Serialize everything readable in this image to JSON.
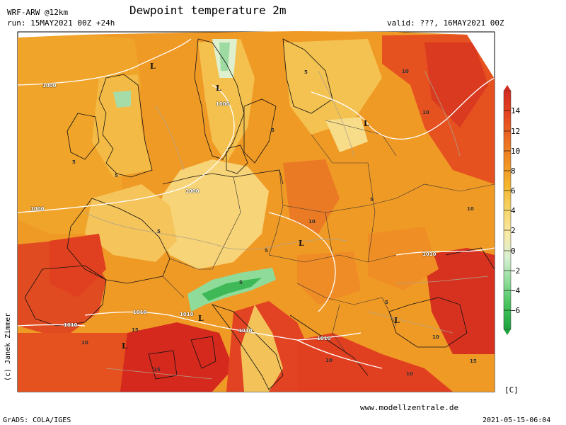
{
  "header": {
    "model": "WRF-ARW @12km",
    "title": "Dewpoint temperature 2m",
    "run": "run: 15MAY2021 00Z +24h",
    "valid": "valid: ???, 16MAY2021 00Z"
  },
  "colorbar": {
    "ticks": [
      "14",
      "12",
      "10",
      "8",
      "6",
      "4",
      "2",
      "0",
      "−2",
      "−4",
      "−6"
    ],
    "unit": "[C]",
    "colors": [
      "#d42a1e",
      "#e4451f",
      "#ec6b23",
      "#f09023",
      "#f4b62e",
      "#f7d66b",
      "#f9eaa6",
      "#d8f0d2",
      "#8fdc9a",
      "#44c35a",
      "#1ea33f"
    ]
  },
  "map": {
    "isobar_labels": [
      "1000",
      "1000",
      "1000",
      "1000",
      "1010",
      "1010",
      "1010",
      "1010",
      "1010"
    ],
    "low_labels": [
      "L",
      "L",
      "L",
      "L",
      "L",
      "L",
      "L"
    ],
    "isotherm_labels": [
      "5",
      "5",
      "5",
      "5",
      "5",
      "5",
      "5",
      "5",
      "5",
      "10",
      "10",
      "10",
      "10",
      "10",
      "10",
      "10",
      "10",
      "15",
      "15",
      "15"
    ]
  },
  "footer": {
    "credit": "(c) Janek Zimmer",
    "website": "www.modellzentrale.de",
    "grads": "GrADS: COLA/IGES",
    "timestamp": "2021-05-15-06:04"
  }
}
